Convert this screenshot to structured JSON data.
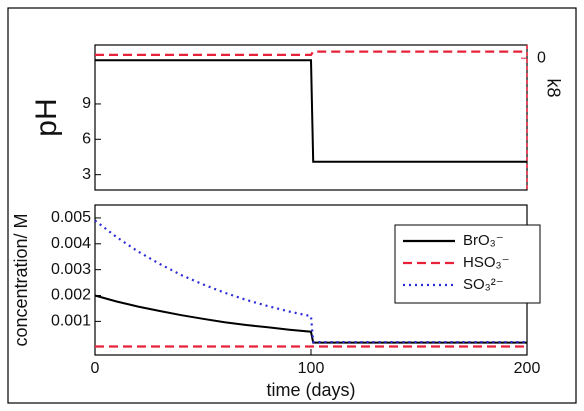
{
  "chart_data": [
    {
      "type": "line",
      "y_label": "pH",
      "y2_label": "k8",
      "xlim": [
        0,
        200
      ],
      "ylim": [
        1.7,
        14
      ],
      "yticks": [
        3,
        6,
        9
      ],
      "y2lim": [
        -2,
        0.2
      ],
      "y2ticks": [
        0
      ],
      "series": [
        {
          "name": "pH",
          "color": "#000000",
          "style": "solid",
          "x": [
            0,
            100,
            101,
            200
          ],
          "values": [
            12.7,
            12.7,
            4.1,
            4.1
          ]
        },
        {
          "name": "k8",
          "color": "#e8213a",
          "style": "dashed",
          "axis": "y2",
          "x": [
            0,
            100,
            101,
            200
          ],
          "values": [
            0.05,
            0.05,
            0.1,
            0.1
          ]
        }
      ]
    },
    {
      "type": "line",
      "x_label": "time (days)",
      "y_label": "concentration/ M",
      "xlim": [
        0,
        200
      ],
      "xticks": [
        0,
        100,
        200
      ],
      "ylim": [
        -0.0003,
        0.0055
      ],
      "yticks": [
        0.001,
        0.002,
        0.003,
        0.004,
        0.005
      ],
      "legend": "upper right",
      "series": [
        {
          "name": "BrO₃⁻",
          "color": "#000000",
          "style": "solid",
          "x": [
            0,
            10,
            20,
            30,
            40,
            50,
            60,
            70,
            80,
            90,
            100,
            101,
            200
          ],
          "values": [
            0.002,
            0.00177,
            0.00157,
            0.0014,
            0.00124,
            0.0011,
            0.00097,
            0.00086,
            0.00077,
            0.00068,
            0.0006,
            0.00018,
            0.00018
          ]
        },
        {
          "name": "HSO₃⁻",
          "color": "#e8213a",
          "style": "dashed",
          "x": [
            0,
            10,
            20,
            30,
            40,
            50,
            60,
            70,
            80,
            90,
            100,
            101,
            200
          ],
          "values": [
            3e-05,
            3e-05,
            3e-05,
            3e-05,
            3e-05,
            3e-05,
            3e-05,
            3e-05,
            3e-05,
            3e-05,
            3e-05,
            3e-05,
            3e-05
          ]
        },
        {
          "name": "SO₃²⁻",
          "color": "#2b2bd9",
          "style": "dotted",
          "x": [
            0,
            10,
            20,
            30,
            40,
            50,
            60,
            70,
            80,
            90,
            100,
            101,
            200
          ],
          "values": [
            0.0049,
            0.00426,
            0.0037,
            0.00322,
            0.00279,
            0.00243,
            0.00211,
            0.00183,
            0.00159,
            0.00138,
            0.0012,
            0.0002,
            0.0002
          ]
        }
      ]
    }
  ]
}
